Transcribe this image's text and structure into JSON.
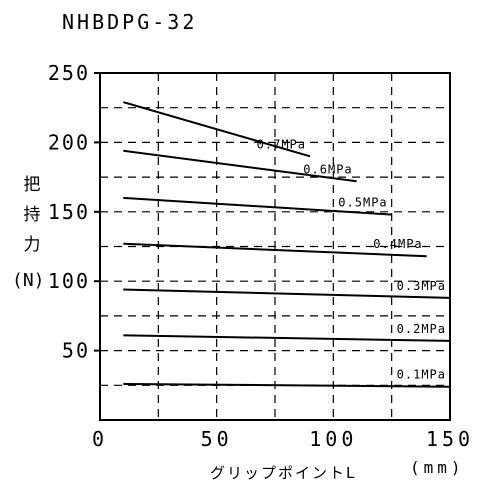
{
  "chart_data": {
    "type": "line",
    "title": "NHBDPG-32",
    "ylabel": "把持力(N)",
    "xlabel": "グリップポイントL",
    "xunit": "(mm)",
    "xlim": [
      0,
      150
    ],
    "ylim": [
      0,
      250
    ],
    "xticks": [
      0,
      50,
      100,
      150
    ],
    "xtick_labels": [
      "0",
      "50",
      "100",
      "150"
    ],
    "yticks": [
      50,
      100,
      150,
      200,
      250
    ],
    "ytick_labels": [
      "50",
      "100",
      "150",
      "200",
      "250"
    ],
    "grid": true,
    "series": [
      {
        "name": "0.7MPa",
        "x": [
          10,
          90
        ],
        "y": [
          229,
          190
        ]
      },
      {
        "name": "0.6MPa",
        "x": [
          10,
          110
        ],
        "y": [
          194,
          172
        ]
      },
      {
        "name": "0.5MPa",
        "x": [
          10,
          125
        ],
        "y": [
          160,
          148
        ]
      },
      {
        "name": "0.4MPa",
        "x": [
          10,
          140
        ],
        "y": [
          127,
          118
        ]
      },
      {
        "name": "0.3MPa",
        "x": [
          10,
          150
        ],
        "y": [
          94,
          88
        ]
      },
      {
        "name": "0.2MPa",
        "x": [
          10,
          150
        ],
        "y": [
          61,
          57
        ]
      },
      {
        "name": "0.1MPa",
        "x": [
          10,
          150
        ],
        "y": [
          26,
          24
        ]
      }
    ]
  }
}
